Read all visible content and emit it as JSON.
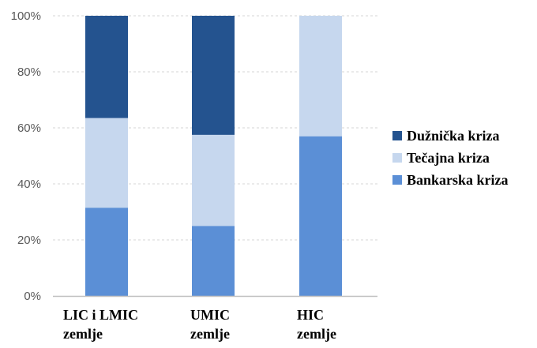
{
  "chart_data": {
    "type": "bar",
    "stacked": true,
    "categories": [
      [
        "LIC i LMIC",
        "zemlje"
      ],
      [
        "UMIC",
        "zemlje"
      ],
      [
        "HIC",
        "zemlje"
      ]
    ],
    "series": [
      {
        "name": "Bankarska kriza",
        "values": [
          31.5,
          25,
          57
        ],
        "color": "#5b8fd6"
      },
      {
        "name": "Tečajna kriza",
        "values": [
          32,
          32.5,
          43
        ],
        "color": "#c6d7ee"
      },
      {
        "name": "Dužnička kriza",
        "values": [
          36.5,
          42.5,
          0
        ],
        "color": "#24538f"
      }
    ],
    "legend_order": [
      "Dužnička kriza",
      "Tečajna kriza",
      "Bankarska kriza"
    ],
    "legend_position": "right",
    "yticks": [
      "0%",
      "20%",
      "40%",
      "60%",
      "80%",
      "100%"
    ],
    "ylim": [
      0,
      100
    ],
    "grid": true,
    "title": "",
    "xlabel": "",
    "ylabel": ""
  }
}
